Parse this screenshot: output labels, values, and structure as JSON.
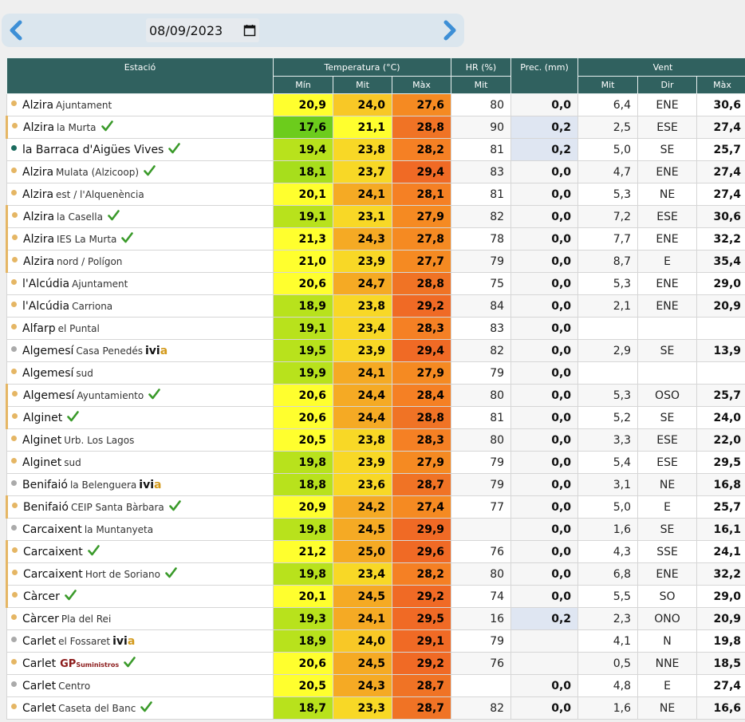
{
  "date": "08/09/2023",
  "headers": {
    "station": "Estació",
    "temp": "Temperatura (°C)",
    "hr": "HR (%)",
    "prec": "Prec. (mm)",
    "wind": "Vent",
    "min": "Mín",
    "mit": "Mit",
    "max": "Màx",
    "hr_mit": "Mit",
    "w_mit": "Mit",
    "dir": "Dir",
    "w_max": "Màx"
  },
  "colors": {
    "header": "#30615f",
    "dot_yellow": "#e5b664",
    "dot_grey": "#aaaaaa",
    "dot_green": "#1a6b5e",
    "check": "#3a9a2a"
  },
  "rows": [
    {
      "name": "Alzira",
      "sub": "Ajuntament",
      "dot": "yellow",
      "check": false,
      "tag": "",
      "min": "20,9",
      "mit": "24,0",
      "max": "27,6",
      "hr": "80",
      "prec": "0,0",
      "wm": "6,4",
      "dir": "ENE",
      "wx": "30,6",
      "cmin": "#ffff2e",
      "cmit": "#f8c826",
      "cmax": "#f58a22"
    },
    {
      "name": "Alzira",
      "sub": "la Murta",
      "dot": "yellow",
      "check": true,
      "tag": "",
      "min": "17,6",
      "mit": "21,1",
      "max": "28,8",
      "hr": "90",
      "prec": "0,2",
      "wm": "2,5",
      "dir": "ESE",
      "wx": "27,4",
      "cmin": "#6ccc1c",
      "cmit": "#ffff2e",
      "cmax": "#f07325",
      "pblue": true
    },
    {
      "name": "la Barraca d'Aigües Vives",
      "sub": "",
      "dot": "green",
      "check": true,
      "tag": "",
      "min": "19,4",
      "mit": "23,8",
      "max": "28,2",
      "hr": "81",
      "prec": "0,2",
      "wm": "5,0",
      "dir": "SE",
      "wx": "25,7",
      "cmin": "#b8e21c",
      "cmit": "#f8d826",
      "cmax": "#f58024",
      "pblue": true
    },
    {
      "name": "Alzira",
      "sub": "Mulata (Alzicoop)",
      "dot": "yellow",
      "check": true,
      "tag": "",
      "min": "18,1",
      "mit": "23,7",
      "max": "29,4",
      "hr": "83",
      "prec": "0,0",
      "wm": "4,7",
      "dir": "ENE",
      "wx": "27,4",
      "cmin": "#a7de1c",
      "cmit": "#f8d826",
      "cmax": "#f06a25"
    },
    {
      "name": "Alzira",
      "sub": "est / l'Alquenència",
      "dot": "yellow",
      "check": false,
      "tag": "",
      "min": "20,1",
      "mit": "24,1",
      "max": "28,1",
      "hr": "81",
      "prec": "0,0",
      "wm": "5,3",
      "dir": "NE",
      "wx": "27,4",
      "cmin": "#ffff2e",
      "cmit": "#f5aa24",
      "cmax": "#f58024"
    },
    {
      "name": "Alzira",
      "sub": "la Casella",
      "dot": "yellow",
      "check": true,
      "tag": "",
      "min": "19,1",
      "mit": "23,1",
      "max": "27,9",
      "hr": "82",
      "prec": "0,0",
      "wm": "7,2",
      "dir": "ESE",
      "wx": "30,6",
      "cmin": "#b8e21c",
      "cmit": "#f8d826",
      "cmax": "#f58a22"
    },
    {
      "name": "Alzira",
      "sub": "IES La Murta",
      "dot": "yellow",
      "check": true,
      "tag": "",
      "min": "21,3",
      "mit": "24,3",
      "max": "27,8",
      "hr": "78",
      "prec": "0,0",
      "wm": "7,7",
      "dir": "ENE",
      "wx": "32,2",
      "cmin": "#ffff2e",
      "cmit": "#f5aa24",
      "cmax": "#f58a22"
    },
    {
      "name": "Alzira",
      "sub": "nord / Polígon",
      "dot": "yellow",
      "check": false,
      "tag": "",
      "min": "21,0",
      "mit": "23,9",
      "max": "27,7",
      "hr": "79",
      "prec": "0,0",
      "wm": "8,7",
      "dir": "E",
      "wx": "35,4",
      "cmin": "#ffff2e",
      "cmit": "#f8d826",
      "cmax": "#f58a22"
    },
    {
      "name": "l'Alcúdia",
      "sub": "Ajuntament",
      "dot": "yellow",
      "check": false,
      "tag": "",
      "min": "20,6",
      "mit": "24,7",
      "max": "28,8",
      "hr": "75",
      "prec": "0,0",
      "wm": "5,3",
      "dir": "ENE",
      "wx": "29,0",
      "cmin": "#ffff2e",
      "cmit": "#f5aa24",
      "cmax": "#f07325"
    },
    {
      "name": "l'Alcúdia",
      "sub": "Carriona",
      "dot": "yellow",
      "check": false,
      "tag": "",
      "min": "18,9",
      "mit": "23,8",
      "max": "29,2",
      "hr": "84",
      "prec": "0,0",
      "wm": "2,1",
      "dir": "ENE",
      "wx": "20,9",
      "cmin": "#b8e21c",
      "cmit": "#f8d826",
      "cmax": "#f06a25"
    },
    {
      "name": "Alfarp",
      "sub": "el Puntal",
      "dot": "yellow",
      "check": false,
      "tag": "",
      "min": "19,1",
      "mit": "23,4",
      "max": "28,3",
      "hr": "83",
      "prec": "0,0",
      "wm": "",
      "dir": "",
      "wx": "",
      "cmin": "#b8e21c",
      "cmit": "#f8d826",
      "cmax": "#f58024"
    },
    {
      "name": "Algemesí",
      "sub": "Casa Penedés",
      "dot": "grey",
      "check": false,
      "tag": "ivia",
      "min": "19,5",
      "mit": "23,9",
      "max": "29,4",
      "hr": "82",
      "prec": "0,0",
      "wm": "2,9",
      "dir": "SE",
      "wx": "13,9",
      "cmin": "#b8e21c",
      "cmit": "#f8d826",
      "cmax": "#f06a25"
    },
    {
      "name": "Algemesí",
      "sub": "sud",
      "dot": "yellow",
      "check": false,
      "tag": "",
      "min": "19,9",
      "mit": "24,1",
      "max": "27,9",
      "hr": "79",
      "prec": "0,0",
      "wm": "",
      "dir": "",
      "wx": "",
      "cmin": "#b8e21c",
      "cmit": "#f5aa24",
      "cmax": "#f58a22"
    },
    {
      "name": "Algemesí",
      "sub": "Ayuntamiento",
      "dot": "yellow",
      "check": true,
      "tag": "",
      "min": "20,6",
      "mit": "24,4",
      "max": "28,4",
      "hr": "80",
      "prec": "0,0",
      "wm": "5,3",
      "dir": "OSO",
      "wx": "25,7",
      "cmin": "#ffff2e",
      "cmit": "#f5aa24",
      "cmax": "#f58024"
    },
    {
      "name": "Alginet",
      "sub": "",
      "dot": "yellow",
      "check": true,
      "tag": "",
      "min": "20,6",
      "mit": "24,4",
      "max": "28,8",
      "hr": "81",
      "prec": "0,0",
      "wm": "5,2",
      "dir": "SE",
      "wx": "24,0",
      "cmin": "#ffff2e",
      "cmit": "#f5aa24",
      "cmax": "#f07325"
    },
    {
      "name": "Alginet",
      "sub": "Urb. Los Lagos",
      "dot": "yellow",
      "check": false,
      "tag": "",
      "min": "20,5",
      "mit": "23,8",
      "max": "28,3",
      "hr": "80",
      "prec": "0,0",
      "wm": "3,3",
      "dir": "ESE",
      "wx": "22,0",
      "cmin": "#ffff2e",
      "cmit": "#f8d826",
      "cmax": "#f58024"
    },
    {
      "name": "Alginet",
      "sub": "sud",
      "dot": "yellow",
      "check": false,
      "tag": "",
      "min": "19,8",
      "mit": "23,9",
      "max": "27,9",
      "hr": "79",
      "prec": "0,0",
      "wm": "5,4",
      "dir": "ESE",
      "wx": "29,5",
      "cmin": "#b8e21c",
      "cmit": "#f8d826",
      "cmax": "#f58a22"
    },
    {
      "name": "Benifaió",
      "sub": "la Belenguera",
      "dot": "grey",
      "check": false,
      "tag": "ivia",
      "min": "18,8",
      "mit": "23,6",
      "max": "28,7",
      "hr": "79",
      "prec": "0,0",
      "wm": "3,1",
      "dir": "NE",
      "wx": "16,8",
      "cmin": "#b8e21c",
      "cmit": "#f8d826",
      "cmax": "#f07325"
    },
    {
      "name": "Benifaió",
      "sub": "CEIP Santa Bàrbara",
      "dot": "yellow",
      "check": true,
      "tag": "",
      "min": "20,9",
      "mit": "24,2",
      "max": "27,4",
      "hr": "77",
      "prec": "0,0",
      "wm": "5,0",
      "dir": "E",
      "wx": "25,7",
      "cmin": "#ffff2e",
      "cmit": "#f5aa24",
      "cmax": "#f58a22"
    },
    {
      "name": "Carcaixent",
      "sub": "la Muntanyeta",
      "dot": "grey",
      "check": false,
      "tag": "",
      "min": "19,8",
      "mit": "24,5",
      "max": "29,9",
      "hr": "",
      "prec": "0,0",
      "wm": "1,6",
      "dir": "SE",
      "wx": "16,1",
      "cmin": "#b8e21c",
      "cmit": "#f5aa24",
      "cmax": "#f06a25"
    },
    {
      "name": "Carcaixent",
      "sub": "",
      "dot": "yellow",
      "check": true,
      "tag": "",
      "min": "21,2",
      "mit": "25,0",
      "max": "29,6",
      "hr": "76",
      "prec": "0,0",
      "wm": "4,3",
      "dir": "SSE",
      "wx": "24,1",
      "cmin": "#ffff2e",
      "cmit": "#f5aa24",
      "cmax": "#f06a25"
    },
    {
      "name": "Carcaixent",
      "sub": "Hort de Soriano",
      "dot": "yellow",
      "check": true,
      "tag": "",
      "min": "19,8",
      "mit": "23,4",
      "max": "28,2",
      "hr": "80",
      "prec": "0,0",
      "wm": "6,8",
      "dir": "ENE",
      "wx": "32,2",
      "cmin": "#b8e21c",
      "cmit": "#f8d826",
      "cmax": "#f58024"
    },
    {
      "name": "Càrcer",
      "sub": "",
      "dot": "yellow",
      "check": true,
      "tag": "",
      "min": "20,1",
      "mit": "24,5",
      "max": "29,2",
      "hr": "74",
      "prec": "0,0",
      "wm": "5,5",
      "dir": "SO",
      "wx": "29,0",
      "cmin": "#ffff2e",
      "cmit": "#f5aa24",
      "cmax": "#f06a25"
    },
    {
      "name": "Càrcer",
      "sub": "Pla del Rei",
      "dot": "yellow",
      "check": false,
      "tag": "",
      "min": "19,3",
      "mit": "24,1",
      "max": "29,5",
      "hr": "16",
      "prec": "0,2",
      "wm": "2,3",
      "dir": "ONO",
      "wx": "20,9",
      "cmin": "#b8e21c",
      "cmit": "#f5aa24",
      "cmax": "#f06a25",
      "pblue": true
    },
    {
      "name": "Carlet",
      "sub": "el Fossaret",
      "dot": "grey",
      "check": false,
      "tag": "ivia",
      "min": "18,9",
      "mit": "24,0",
      "max": "29,1",
      "hr": "79",
      "prec": "",
      "wm": "4,1",
      "dir": "N",
      "wx": "19,8",
      "cmin": "#b8e21c",
      "cmit": "#f8c826",
      "cmax": "#f06a25"
    },
    {
      "name": "Carlet",
      "sub": "",
      "dot": "yellow",
      "check": true,
      "tag": "gp",
      "min": "20,6",
      "mit": "24,5",
      "max": "29,2",
      "hr": "76",
      "prec": "",
      "wm": "0,5",
      "dir": "NNE",
      "wx": "18,5",
      "cmin": "#ffff2e",
      "cmit": "#f5aa24",
      "cmax": "#f06a25"
    },
    {
      "name": "Carlet",
      "sub": "Centro",
      "dot": "grey",
      "check": false,
      "tag": "",
      "min": "20,5",
      "mit": "24,3",
      "max": "28,7",
      "hr": "",
      "prec": "0,0",
      "wm": "4,8",
      "dir": "E",
      "wx": "27,4",
      "cmin": "#ffff2e",
      "cmit": "#f5aa24",
      "cmax": "#f07325"
    },
    {
      "name": "Carlet",
      "sub": "Caseta del Banc",
      "dot": "yellow",
      "check": true,
      "tag": "",
      "min": "18,7",
      "mit": "23,3",
      "max": "28,7",
      "hr": "82",
      "prec": "0,0",
      "wm": "1,6",
      "dir": "NE",
      "wx": "16,6",
      "cmin": "#b8e21c",
      "cmit": "#f8d826",
      "cmax": "#f07325"
    }
  ],
  "tags": {
    "ivia_a": "ivi",
    "ivia_b": "a",
    "gp": "GP",
    "gp_sub": "Suministros"
  }
}
